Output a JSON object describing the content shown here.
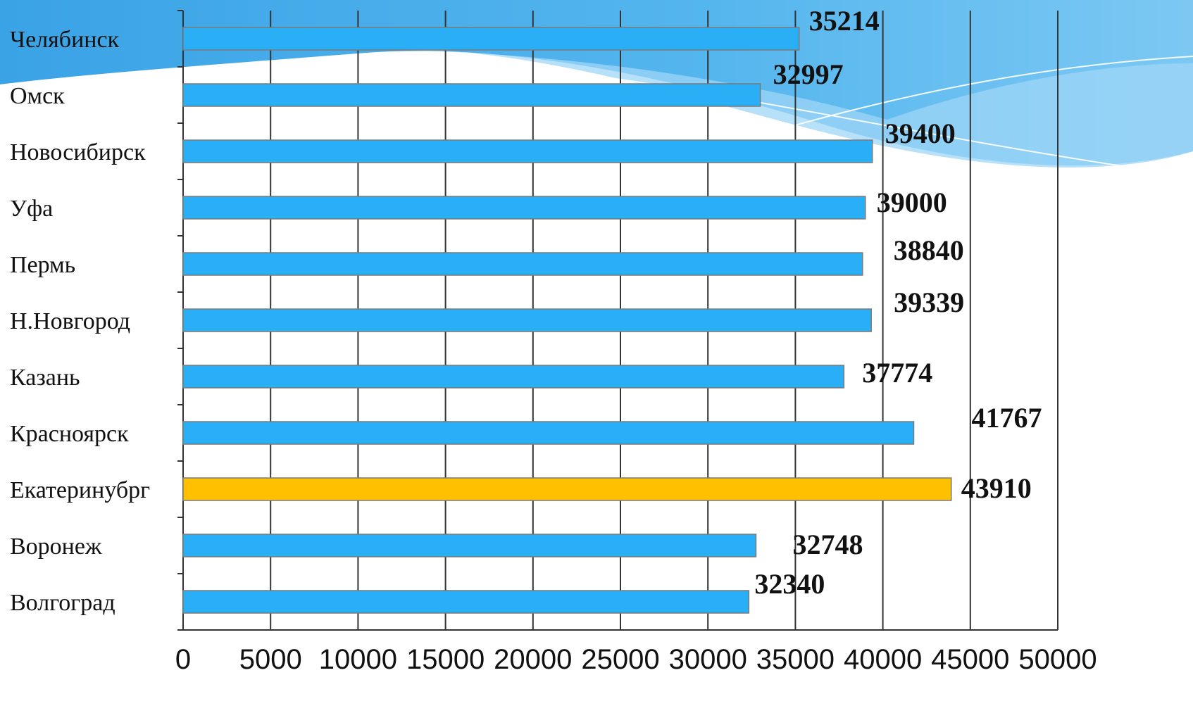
{
  "chart_data": {
    "type": "bar",
    "orientation": "horizontal",
    "categories": [
      "Челябинск",
      "Омск",
      "Новосибирск",
      "Уфа",
      "Пермь",
      "Н.Новгород",
      "Казань",
      "Красноярск",
      "Екатеринубрг",
      "Воронеж",
      "Волгоград"
    ],
    "values": [
      35214,
      32997,
      39400,
      39000,
      38840,
      39339,
      37774,
      41767,
      43910,
      32748,
      32340
    ],
    "data_labels": [
      "35214",
      "32997",
      "39400",
      "39000",
      "38840",
      "39339",
      "37774",
      "41767",
      "43910",
      "32748",
      "32340"
    ],
    "x_ticks": [
      "0",
      "5000",
      "10000",
      "15000",
      "20000",
      "25000",
      "30000",
      "35000",
      "40000",
      "45000",
      "50000"
    ],
    "xlim": [
      0,
      50000
    ],
    "grid": true,
    "title": "",
    "xlabel": "",
    "ylabel": "",
    "colors": {
      "bar": "#2aaef5",
      "highlight_bar": "#ffc000",
      "highlight_index": 8,
      "bar_border": "#7a7a7a",
      "gridline": "#333333",
      "background_wave": "#3fa9ea",
      "background_wave_light": "#9fd6f7"
    }
  }
}
